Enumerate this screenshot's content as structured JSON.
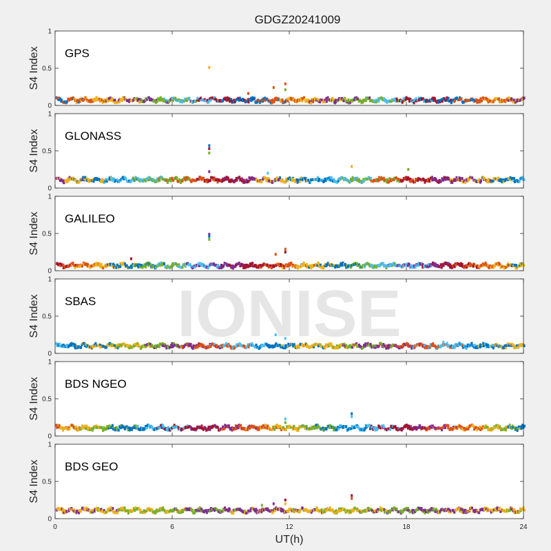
{
  "figure": {
    "title": "GDGZ20241009",
    "watermark": "IONISE",
    "xlabel": "UT(h)",
    "background": "#f0f0f0",
    "axes_background": "#ffffff"
  },
  "chart_data": [
    {
      "type": "scatter",
      "panel_label": "GPS",
      "ylabel": "S4 Index",
      "xlim": [
        0,
        24
      ],
      "ylim": [
        0,
        1
      ],
      "xticks": [
        0,
        6,
        12,
        18,
        24
      ],
      "yticks": [
        0,
        0.5,
        1
      ],
      "baseline": 0.07,
      "colors": [
        "#0072BD",
        "#D95319",
        "#EDB120",
        "#7E2F8E",
        "#77AC30",
        "#4DBEEE",
        "#A2142F"
      ],
      "outliers": [
        {
          "x": 7.9,
          "y": 0.51,
          "color": "#EDB120"
        },
        {
          "x": 11.2,
          "y": 0.24,
          "color": "#D95319"
        },
        {
          "x": 11.8,
          "y": 0.29,
          "color": "#D95319"
        },
        {
          "x": 11.8,
          "y": 0.21,
          "color": "#77AC30"
        },
        {
          "x": 9.9,
          "y": 0.16,
          "color": "#D95319"
        }
      ]
    },
    {
      "type": "scatter",
      "panel_label": "GLONASS",
      "ylabel": "S4 Index",
      "xlim": [
        0,
        24
      ],
      "ylim": [
        0,
        1
      ],
      "xticks": [
        0,
        6,
        12,
        18,
        24
      ],
      "yticks": [
        0,
        0.5,
        1
      ],
      "baseline": 0.11,
      "colors": [
        "#7E2F8E",
        "#EDB120",
        "#0072BD",
        "#4DBEEE",
        "#77AC30",
        "#D95319",
        "#A2142F"
      ],
      "outliers": [
        {
          "x": 7.9,
          "y": 0.57,
          "color": "#0072BD"
        },
        {
          "x": 7.9,
          "y": 0.53,
          "color": "#A2142F"
        },
        {
          "x": 7.9,
          "y": 0.47,
          "color": "#77AC30"
        },
        {
          "x": 7.9,
          "y": 0.22,
          "color": "#7E2F8E"
        },
        {
          "x": 15.2,
          "y": 0.29,
          "color": "#EDB120"
        },
        {
          "x": 18.1,
          "y": 0.25,
          "color": "#77AC30"
        },
        {
          "x": 10.9,
          "y": 0.2,
          "color": "#4DBEEE"
        }
      ]
    },
    {
      "type": "scatter",
      "panel_label": "GALILEO",
      "ylabel": "S4 Index",
      "xlim": [
        0,
        24
      ],
      "ylim": [
        0,
        1
      ],
      "xticks": [
        0,
        6,
        12,
        18,
        24
      ],
      "yticks": [
        0,
        0.5,
        1
      ],
      "baseline": 0.07,
      "colors": [
        "#A2142F",
        "#D95319",
        "#EDB120",
        "#0072BD",
        "#77AC30",
        "#4DBEEE",
        "#7E2F8E"
      ],
      "outliers": [
        {
          "x": 7.9,
          "y": 0.49,
          "color": "#7E2F8E"
        },
        {
          "x": 7.9,
          "y": 0.46,
          "color": "#0072BD"
        },
        {
          "x": 7.9,
          "y": 0.42,
          "color": "#77AC30"
        },
        {
          "x": 11.8,
          "y": 0.29,
          "color": "#D95319"
        },
        {
          "x": 11.8,
          "y": 0.25,
          "color": "#A2142F"
        },
        {
          "x": 11.3,
          "y": 0.22,
          "color": "#D95319"
        },
        {
          "x": 3.9,
          "y": 0.16,
          "color": "#A2142F"
        }
      ]
    },
    {
      "type": "scatter",
      "panel_label": "SBAS",
      "ylabel": "S4 Index",
      "xlim": [
        0,
        24
      ],
      "ylim": [
        0,
        1
      ],
      "xticks": [
        0,
        6,
        12,
        18,
        24
      ],
      "yticks": [
        0,
        0.5,
        1
      ],
      "baseline": 0.1,
      "colors": [
        "#4DBEEE",
        "#0072BD",
        "#EDB120",
        "#77AC30",
        "#7E2F8E",
        "#D95319"
      ],
      "outliers": [
        {
          "x": 11.3,
          "y": 0.25,
          "color": "#4DBEEE"
        },
        {
          "x": 11.8,
          "y": 0.2,
          "color": "#4DBEEE"
        },
        {
          "x": 19.9,
          "y": 0.15,
          "color": "#4DBEEE"
        }
      ]
    },
    {
      "type": "scatter",
      "panel_label": "BDS NGEO",
      "ylabel": "S4 Index",
      "xlim": [
        0,
        24
      ],
      "ylim": [
        0,
        1
      ],
      "xticks": [
        0,
        6,
        12,
        18,
        24
      ],
      "yticks": [
        0,
        0.5,
        1
      ],
      "baseline": 0.11,
      "colors": [
        "#D95319",
        "#EDB120",
        "#77AC30",
        "#0072BD",
        "#4DBEEE",
        "#A2142F",
        "#7E2F8E"
      ],
      "outliers": [
        {
          "x": 15.2,
          "y": 0.3,
          "color": "#0072BD"
        },
        {
          "x": 15.2,
          "y": 0.26,
          "color": "#4DBEEE"
        },
        {
          "x": 11.8,
          "y": 0.23,
          "color": "#4DBEEE"
        },
        {
          "x": 11.8,
          "y": 0.18,
          "color": "#77AC30"
        }
      ]
    },
    {
      "type": "scatter",
      "panel_label": "BDS GEO",
      "ylabel": "S4 Index",
      "xlim": [
        0,
        24
      ],
      "ylim": [
        0,
        1
      ],
      "xticks": [
        0,
        6,
        12,
        18,
        24
      ],
      "yticks": [
        0,
        0.5,
        1
      ],
      "baseline": 0.11,
      "colors": [
        "#7E2F8E",
        "#EDB120",
        "#77AC30"
      ],
      "outliers": [
        {
          "x": 15.2,
          "y": 0.31,
          "color": "#A2142F"
        },
        {
          "x": 15.2,
          "y": 0.27,
          "color": "#D95319"
        },
        {
          "x": 11.8,
          "y": 0.25,
          "color": "#A2142F"
        },
        {
          "x": 11.8,
          "y": 0.2,
          "color": "#EDB120"
        },
        {
          "x": 11.2,
          "y": 0.2,
          "color": "#7E2F8E"
        },
        {
          "x": 10.6,
          "y": 0.18,
          "color": "#77AC30"
        }
      ]
    }
  ]
}
